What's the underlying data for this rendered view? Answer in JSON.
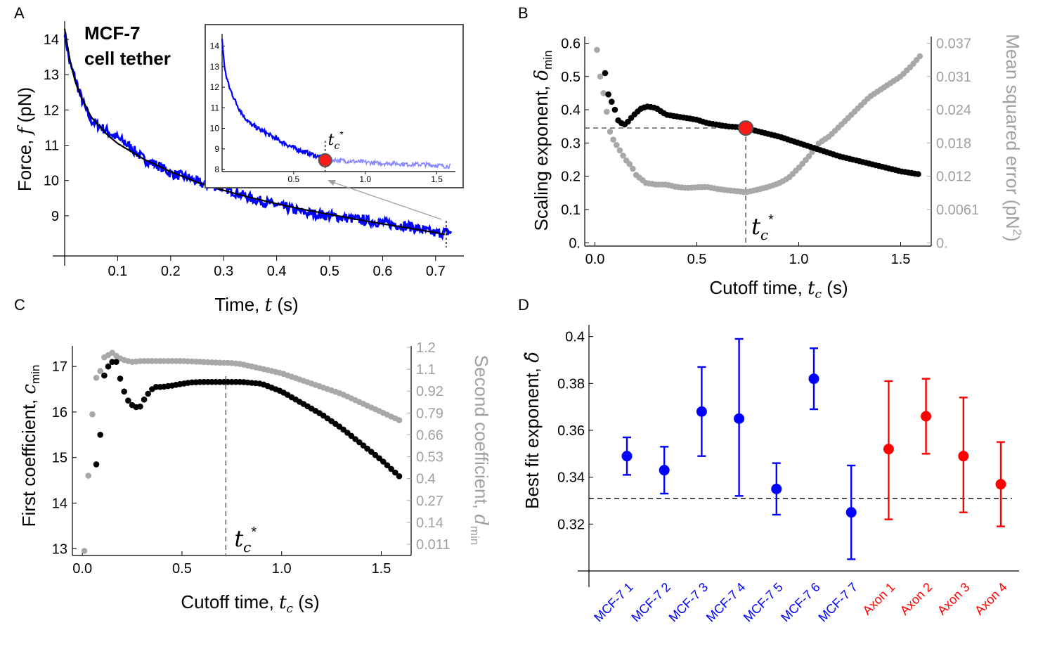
{
  "chart_data": [
    {
      "panel": "A",
      "type": "line",
      "annotation": [
        "MCF-7",
        "cell tether"
      ],
      "xlabel": "Time,",
      "xlabel_var": "t",
      "xlabel_unit": "(s)",
      "ylabel": "Force,",
      "ylabel_var": "f",
      "ylabel_unit": "(pN)",
      "xlim": [
        0,
        0.74
      ],
      "ylim": [
        8.1,
        14.4
      ],
      "x_ticks": [
        "0.1",
        "0.2",
        "0.3",
        "0.4",
        "0.5",
        "0.6",
        "0.7"
      ],
      "y_ticks": [
        "9",
        "10",
        "11",
        "12",
        "13",
        "14"
      ],
      "fit_label": "",
      "series": [
        {
          "color": "#0000ff",
          "x": [
            0.0,
            0.01,
            0.02,
            0.03,
            0.04,
            0.05,
            0.06,
            0.08,
            0.1,
            0.12,
            0.15,
            0.18,
            0.2,
            0.23,
            0.26,
            0.3,
            0.35,
            0.4,
            0.45,
            0.5,
            0.55,
            0.6,
            0.65,
            0.7,
            0.73
          ],
          "y": [
            14.2,
            13.3,
            12.9,
            12.4,
            12.0,
            11.7,
            11.6,
            11.4,
            11.2,
            11.0,
            10.6,
            10.4,
            10.2,
            10.1,
            9.9,
            9.8,
            9.5,
            9.3,
            9.1,
            9.0,
            8.9,
            8.8,
            8.7,
            8.5,
            8.55
          ]
        },
        {
          "color": "#000000",
          "x": [
            0.0,
            0.01,
            0.02,
            0.03,
            0.05,
            0.08,
            0.1,
            0.15,
            0.2,
            0.25,
            0.3,
            0.35,
            0.4,
            0.45,
            0.5,
            0.55,
            0.6,
            0.65,
            0.7,
            0.72
          ],
          "y": [
            14.3,
            13.4,
            12.8,
            12.4,
            11.8,
            11.3,
            11.05,
            10.6,
            10.25,
            9.95,
            9.72,
            9.52,
            9.34,
            9.18,
            9.04,
            8.9,
            8.77,
            8.65,
            8.52,
            8.46
          ]
        }
      ],
      "marker_x": 0.72,
      "inset": {
        "xlim": [
          0,
          1.62
        ],
        "ylim": [
          7.9,
          14.6
        ],
        "x_ticks": [
          "0.5",
          "1.0",
          "1.5"
        ],
        "y_ticks": [
          "8",
          "9",
          "10",
          "11",
          "12",
          "13",
          "14"
        ],
        "highlight_label": "t",
        "highlight_sub": "c",
        "highlight_sup": "*",
        "highlight_x": 0.72,
        "highlight_y": 8.45,
        "series": [
          {
            "color": "#0000ff",
            "x": [
              0.0,
              0.02,
              0.05,
              0.1,
              0.15,
              0.2,
              0.3,
              0.4,
              0.5,
              0.6,
              0.7,
              0.72
            ],
            "y": [
              14.3,
              12.8,
              12.0,
              11.2,
              10.6,
              10.2,
              9.8,
              9.4,
              9.05,
              8.8,
              8.55,
              8.5
            ]
          },
          {
            "color": "#8888ff",
            "x": [
              0.72,
              0.8,
              0.9,
              1.0,
              1.1,
              1.2,
              1.3,
              1.4,
              1.5,
              1.6
            ],
            "y": [
              8.5,
              8.45,
              8.4,
              8.35,
              8.3,
              8.3,
              8.25,
              8.25,
              8.2,
              8.15
            ]
          }
        ]
      }
    },
    {
      "panel": "B",
      "type": "scatter",
      "xlabel": "Cutoff time,",
      "xlabel_var": "t",
      "xlabel_sub": "c",
      "xlabel_unit": "(s)",
      "ylabel": "Scaling exponent,",
      "ylabel_var": "δ",
      "ylabel_sub": "min",
      "y2label": "Mean squared error (pN",
      "y2label_sup": "2",
      "y2label_end": ")",
      "xlim": [
        -0.05,
        1.65
      ],
      "ylim": [
        -0.01,
        0.62
      ],
      "x_ticks": [
        "0.0",
        "0.5",
        "1.0",
        "1.5"
      ],
      "y_ticks": [
        "0.",
        "0.1",
        "0.2",
        "0.3",
        "0.4",
        "0.5",
        "0.6"
      ],
      "y2_ticks": [
        "0.",
        "0.0061",
        "0.012",
        "0.018",
        "0.024",
        "0.031",
        "0.037"
      ],
      "highlight_label": "t",
      "highlight_sub": "c",
      "highlight_sup": "*",
      "highlight_x": 0.74,
      "highlight_y": 0.345,
      "series": [
        {
          "axis": "left",
          "color": "#000000",
          "x": [
            0.05,
            0.07,
            0.09,
            0.11,
            0.13,
            0.15,
            0.17,
            0.2,
            0.23,
            0.26,
            0.3,
            0.35,
            0.4,
            0.45,
            0.5,
            0.55,
            0.6,
            0.65,
            0.7,
            0.74,
            0.8,
            0.9,
            1.0,
            1.1,
            1.2,
            1.3,
            1.4,
            1.5,
            1.6
          ],
          "y": [
            0.51,
            0.43,
            0.42,
            0.37,
            0.36,
            0.355,
            0.37,
            0.39,
            0.405,
            0.41,
            0.405,
            0.385,
            0.38,
            0.375,
            0.37,
            0.36,
            0.355,
            0.35,
            0.348,
            0.345,
            0.335,
            0.32,
            0.3,
            0.28,
            0.26,
            0.245,
            0.23,
            0.215,
            0.205
          ]
        },
        {
          "axis": "right",
          "color": "#a8a8a8",
          "x": [
            0.01,
            0.03,
            0.05,
            0.07,
            0.09,
            0.11,
            0.13,
            0.15,
            0.18,
            0.2,
            0.25,
            0.3,
            0.35,
            0.4,
            0.45,
            0.5,
            0.55,
            0.6,
            0.65,
            0.7,
            0.74,
            0.8,
            0.85,
            0.9,
            0.95,
            1.0,
            1.05,
            1.1,
            1.15,
            1.2,
            1.25,
            1.3,
            1.35,
            1.4,
            1.45,
            1.5,
            1.55,
            1.6
          ],
          "y": [
            0.58,
            0.48,
            0.43,
            0.34,
            0.31,
            0.29,
            0.27,
            0.25,
            0.23,
            0.205,
            0.18,
            0.175,
            0.175,
            0.168,
            0.165,
            0.167,
            0.168,
            0.162,
            0.158,
            0.155,
            0.152,
            0.16,
            0.168,
            0.178,
            0.195,
            0.225,
            0.26,
            0.3,
            0.32,
            0.35,
            0.38,
            0.41,
            0.44,
            0.46,
            0.48,
            0.5,
            0.53,
            0.565
          ]
        }
      ]
    },
    {
      "panel": "C",
      "type": "scatter",
      "xlabel": "Cutoff time,",
      "xlabel_var": "t",
      "xlabel_sub": "c",
      "xlabel_unit": "(s)",
      "ylabel": "First coefficient,",
      "ylabel_var": "c",
      "ylabel_sub": "min",
      "y2label": "Second coefficient,",
      "y2label_var": "d",
      "y2label_sub": "min",
      "xlim": [
        -0.05,
        1.65
      ],
      "ylim": [
        12.85,
        17.45
      ],
      "x_ticks": [
        "0.0",
        "0.5",
        "1.0",
        "1.5"
      ],
      "y_ticks": [
        "13",
        "14",
        "15",
        "16",
        "17"
      ],
      "y2_ticks": [
        "0.011",
        "0.14",
        "0.27",
        "0.4",
        "0.53",
        "0.66",
        "0.79",
        "0.92",
        "1.1",
        "1.2"
      ],
      "highlight_label": "t",
      "highlight_sub": "c",
      "highlight_sup": "*",
      "highlight_x": 0.72,
      "series": [
        {
          "axis": "left",
          "color": "#000000",
          "x": [
            0.07,
            0.09,
            0.11,
            0.14,
            0.17,
            0.2,
            0.23,
            0.26,
            0.29,
            0.32,
            0.36,
            0.4,
            0.45,
            0.5,
            0.55,
            0.6,
            0.7,
            0.8,
            0.9,
            1.0,
            1.1,
            1.2,
            1.3,
            1.4,
            1.5,
            1.6
          ],
          "y": [
            14.85,
            15.5,
            16.8,
            17.1,
            17.1,
            16.55,
            16.25,
            16.1,
            16.12,
            16.35,
            16.55,
            16.55,
            16.58,
            16.62,
            16.65,
            16.66,
            16.66,
            16.66,
            16.62,
            16.45,
            16.2,
            15.95,
            15.65,
            15.3,
            14.95,
            14.55
          ]
        },
        {
          "axis": "right",
          "color": "#a8a8a8",
          "x": [
            0.01,
            0.03,
            0.05,
            0.07,
            0.09,
            0.11,
            0.13,
            0.15,
            0.18,
            0.2,
            0.25,
            0.3,
            0.4,
            0.5,
            0.6,
            0.7,
            0.74,
            0.8,
            0.9,
            1.0,
            1.1,
            1.2,
            1.3,
            1.4,
            1.5,
            1.6
          ],
          "y": [
            12.95,
            14.6,
            15.95,
            16.75,
            16.9,
            17.2,
            17.25,
            17.3,
            17.2,
            17.15,
            17.1,
            17.12,
            17.12,
            17.12,
            17.1,
            17.08,
            17.08,
            17.05,
            16.95,
            16.85,
            16.7,
            16.55,
            16.4,
            16.2,
            16.0,
            15.8
          ]
        }
      ]
    },
    {
      "panel": "D",
      "type": "scatter",
      "ylabel": "Best fit exponent,",
      "ylabel_var": "δ̂",
      "ylim": [
        0.3,
        0.405
      ],
      "y_ticks": [
        "0.32",
        "0.34",
        "0.36",
        "0.38",
        "0.4"
      ],
      "reference_y": 0.331,
      "categories": [
        "MCF-7 1",
        "MCF-7 2",
        "MCF-7 3",
        "MCF-7 4",
        "MCF-7 5",
        "MCF-7 6",
        "MCF-7 7",
        "Axon 1",
        "Axon 2",
        "Axon 3",
        "Axon 4"
      ],
      "category_colors": [
        "#0000ff",
        "#0000ff",
        "#0000ff",
        "#0000ff",
        "#0000ff",
        "#0000ff",
        "#0000ff",
        "#ff0000",
        "#ff0000",
        "#ff0000",
        "#ff0000"
      ],
      "values": [
        0.349,
        0.343,
        0.368,
        0.365,
        0.335,
        0.382,
        0.325,
        0.352,
        0.366,
        0.349,
        0.337
      ],
      "err_low": [
        0.341,
        0.333,
        0.349,
        0.332,
        0.324,
        0.369,
        0.305,
        0.322,
        0.35,
        0.325,
        0.319
      ],
      "err_high": [
        0.357,
        0.353,
        0.387,
        0.399,
        0.346,
        0.395,
        0.345,
        0.381,
        0.382,
        0.374,
        0.355
      ]
    }
  ]
}
